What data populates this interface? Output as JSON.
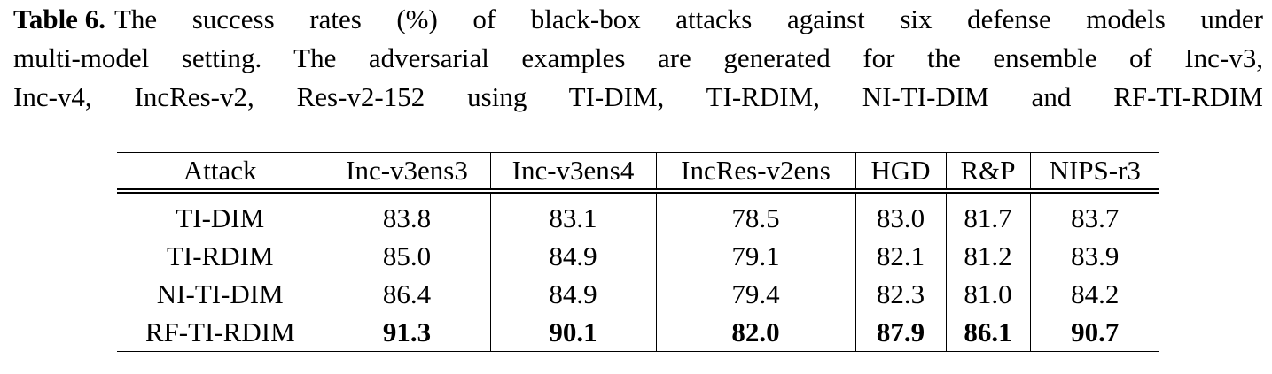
{
  "caption": {
    "label": "Table 6.",
    "lines": [
      "The success rates (%) of black-box attacks against six defense models under",
      "multi-model setting. The adversarial examples are generated for the ensemble of Inc-v3,",
      "Inc-v4, IncRes-v2, Res-v2-152 using TI-DIM, TI-RDIM, NI-TI-DIM and RF-TI-RDIM"
    ]
  },
  "table": {
    "header": [
      "Attack",
      "Inc-v3ens3",
      "Inc-v3ens4",
      "IncRes-v2ens",
      "HGD",
      "R&P",
      "NIPS-r3"
    ],
    "rows": [
      [
        "TI-DIM",
        "83.8",
        "83.1",
        "78.5",
        "83.0",
        "81.7",
        "83.7"
      ],
      [
        "TI-RDIM",
        "85.0",
        "84.9",
        "79.1",
        "82.1",
        "81.2",
        "83.9"
      ],
      [
        "NI-TI-DIM",
        "86.4",
        "84.9",
        "79.4",
        "82.3",
        "81.0",
        "84.2"
      ],
      [
        "RF-TI-RDIM",
        "91.3",
        "90.1",
        "82.0",
        "87.9",
        "86.1",
        "90.7"
      ]
    ]
  }
}
